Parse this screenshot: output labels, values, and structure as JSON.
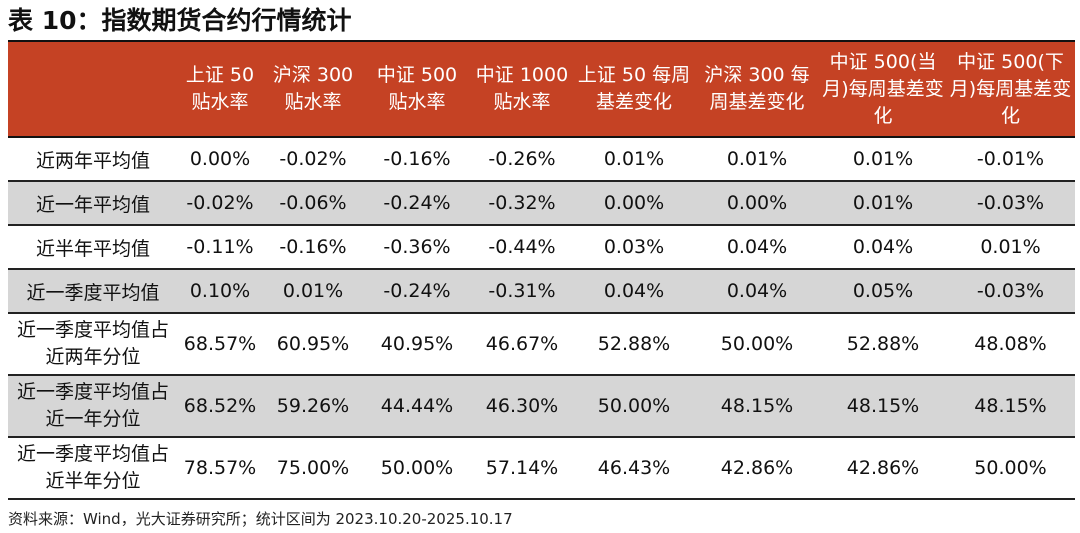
{
  "title": "表 10：指数期货合约行情统计",
  "colors": {
    "header_bg": "#c54224",
    "header_text": "#ffffff",
    "shade_row": "#d6d6d6"
  },
  "table": {
    "headers": [
      "",
      "上证 50 贴水率",
      "沪深 300 贴水率",
      "中证 500 贴水率",
      "中证 1000 贴水率",
      "上证 50 每周基差变化",
      "沪深 300 每周基差变化",
      "中证 500(当月)每周基差变化",
      "中证 500(下月)每周基差变化"
    ],
    "rows": [
      {
        "label": "近两年平均值",
        "values": [
          "0.00%",
          "-0.02%",
          "-0.16%",
          "-0.26%",
          "0.01%",
          "0.01%",
          "0.01%",
          "-0.01%"
        ]
      },
      {
        "label": "近一年平均值",
        "values": [
          "-0.02%",
          "-0.06%",
          "-0.24%",
          "-0.32%",
          "0.00%",
          "0.00%",
          "0.01%",
          "-0.03%"
        ]
      },
      {
        "label": "近半年平均值",
        "values": [
          "-0.11%",
          "-0.16%",
          "-0.36%",
          "-0.44%",
          "0.03%",
          "0.04%",
          "0.04%",
          "0.01%"
        ]
      },
      {
        "label": "近一季度平均值",
        "values": [
          "0.10%",
          "0.01%",
          "-0.24%",
          "-0.31%",
          "0.04%",
          "0.04%",
          "0.05%",
          "-0.03%"
        ]
      },
      {
        "label": "近一季度平均值占近两年分位",
        "values": [
          "68.57%",
          "60.95%",
          "40.95%",
          "46.67%",
          "52.88%",
          "50.00%",
          "52.88%",
          "48.08%"
        ]
      },
      {
        "label": "近一季度平均值占近一年分位",
        "values": [
          "68.52%",
          "59.26%",
          "44.44%",
          "46.30%",
          "50.00%",
          "48.15%",
          "48.15%",
          "48.15%"
        ]
      },
      {
        "label": "近一季度平均值占近半年分位",
        "values": [
          "78.57%",
          "75.00%",
          "50.00%",
          "57.14%",
          "46.43%",
          "42.86%",
          "42.86%",
          "50.00%"
        ]
      }
    ]
  },
  "source": "资料来源：Wind，光大证券研究所；统计区间为 2023.10.20-2025.10.17"
}
